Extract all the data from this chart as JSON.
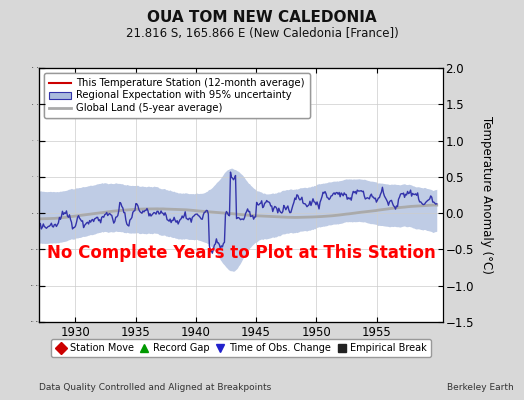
{
  "title": "OUA TOM NEW CALEDONIA",
  "subtitle": "21.816 S, 165.866 E (New Caledonia [France])",
  "ylabel": "Temperature Anomaly (°C)",
  "xlim": [
    1927.0,
    1960.5
  ],
  "ylim": [
    -1.5,
    2.0
  ],
  "yticks": [
    -1.5,
    -1.0,
    -0.5,
    0.0,
    0.5,
    1.0,
    1.5,
    2.0
  ],
  "xticks": [
    1930,
    1935,
    1940,
    1945,
    1950,
    1955
  ],
  "annotation": "No Complete Years to Plot at This Station",
  "annotation_color": "#ff0000",
  "footer_left": "Data Quality Controlled and Aligned at Breakpoints",
  "footer_right": "Berkeley Earth",
  "regional_color": "#3333aa",
  "regional_fill_color": "#aabbdd",
  "global_land_color": "#aaaaaa",
  "station_color": "#cc0000",
  "bg_color": "#d8d8d8",
  "plot_bg_color": "#ffffff",
  "legend1_items": [
    {
      "label": "This Temperature Station (12-month average)",
      "color": "#cc0000",
      "lw": 1.5
    },
    {
      "label": "Regional Expectation with 95% uncertainty",
      "color": "#3333aa",
      "lw": 1.5
    },
    {
      "label": "Global Land (5-year average)",
      "color": "#aaaaaa",
      "lw": 2.0
    }
  ],
  "legend2_items": [
    {
      "label": "Station Move",
      "marker": "D",
      "color": "#cc0000"
    },
    {
      "label": "Record Gap",
      "marker": "^",
      "color": "#009900"
    },
    {
      "label": "Time of Obs. Change",
      "marker": "v",
      "color": "#2222cc"
    },
    {
      "label": "Empirical Break",
      "marker": "s",
      "color": "#222222"
    }
  ],
  "seed": 42,
  "x_start": 1927.0,
  "x_end": 1960.0,
  "n_months": 396
}
